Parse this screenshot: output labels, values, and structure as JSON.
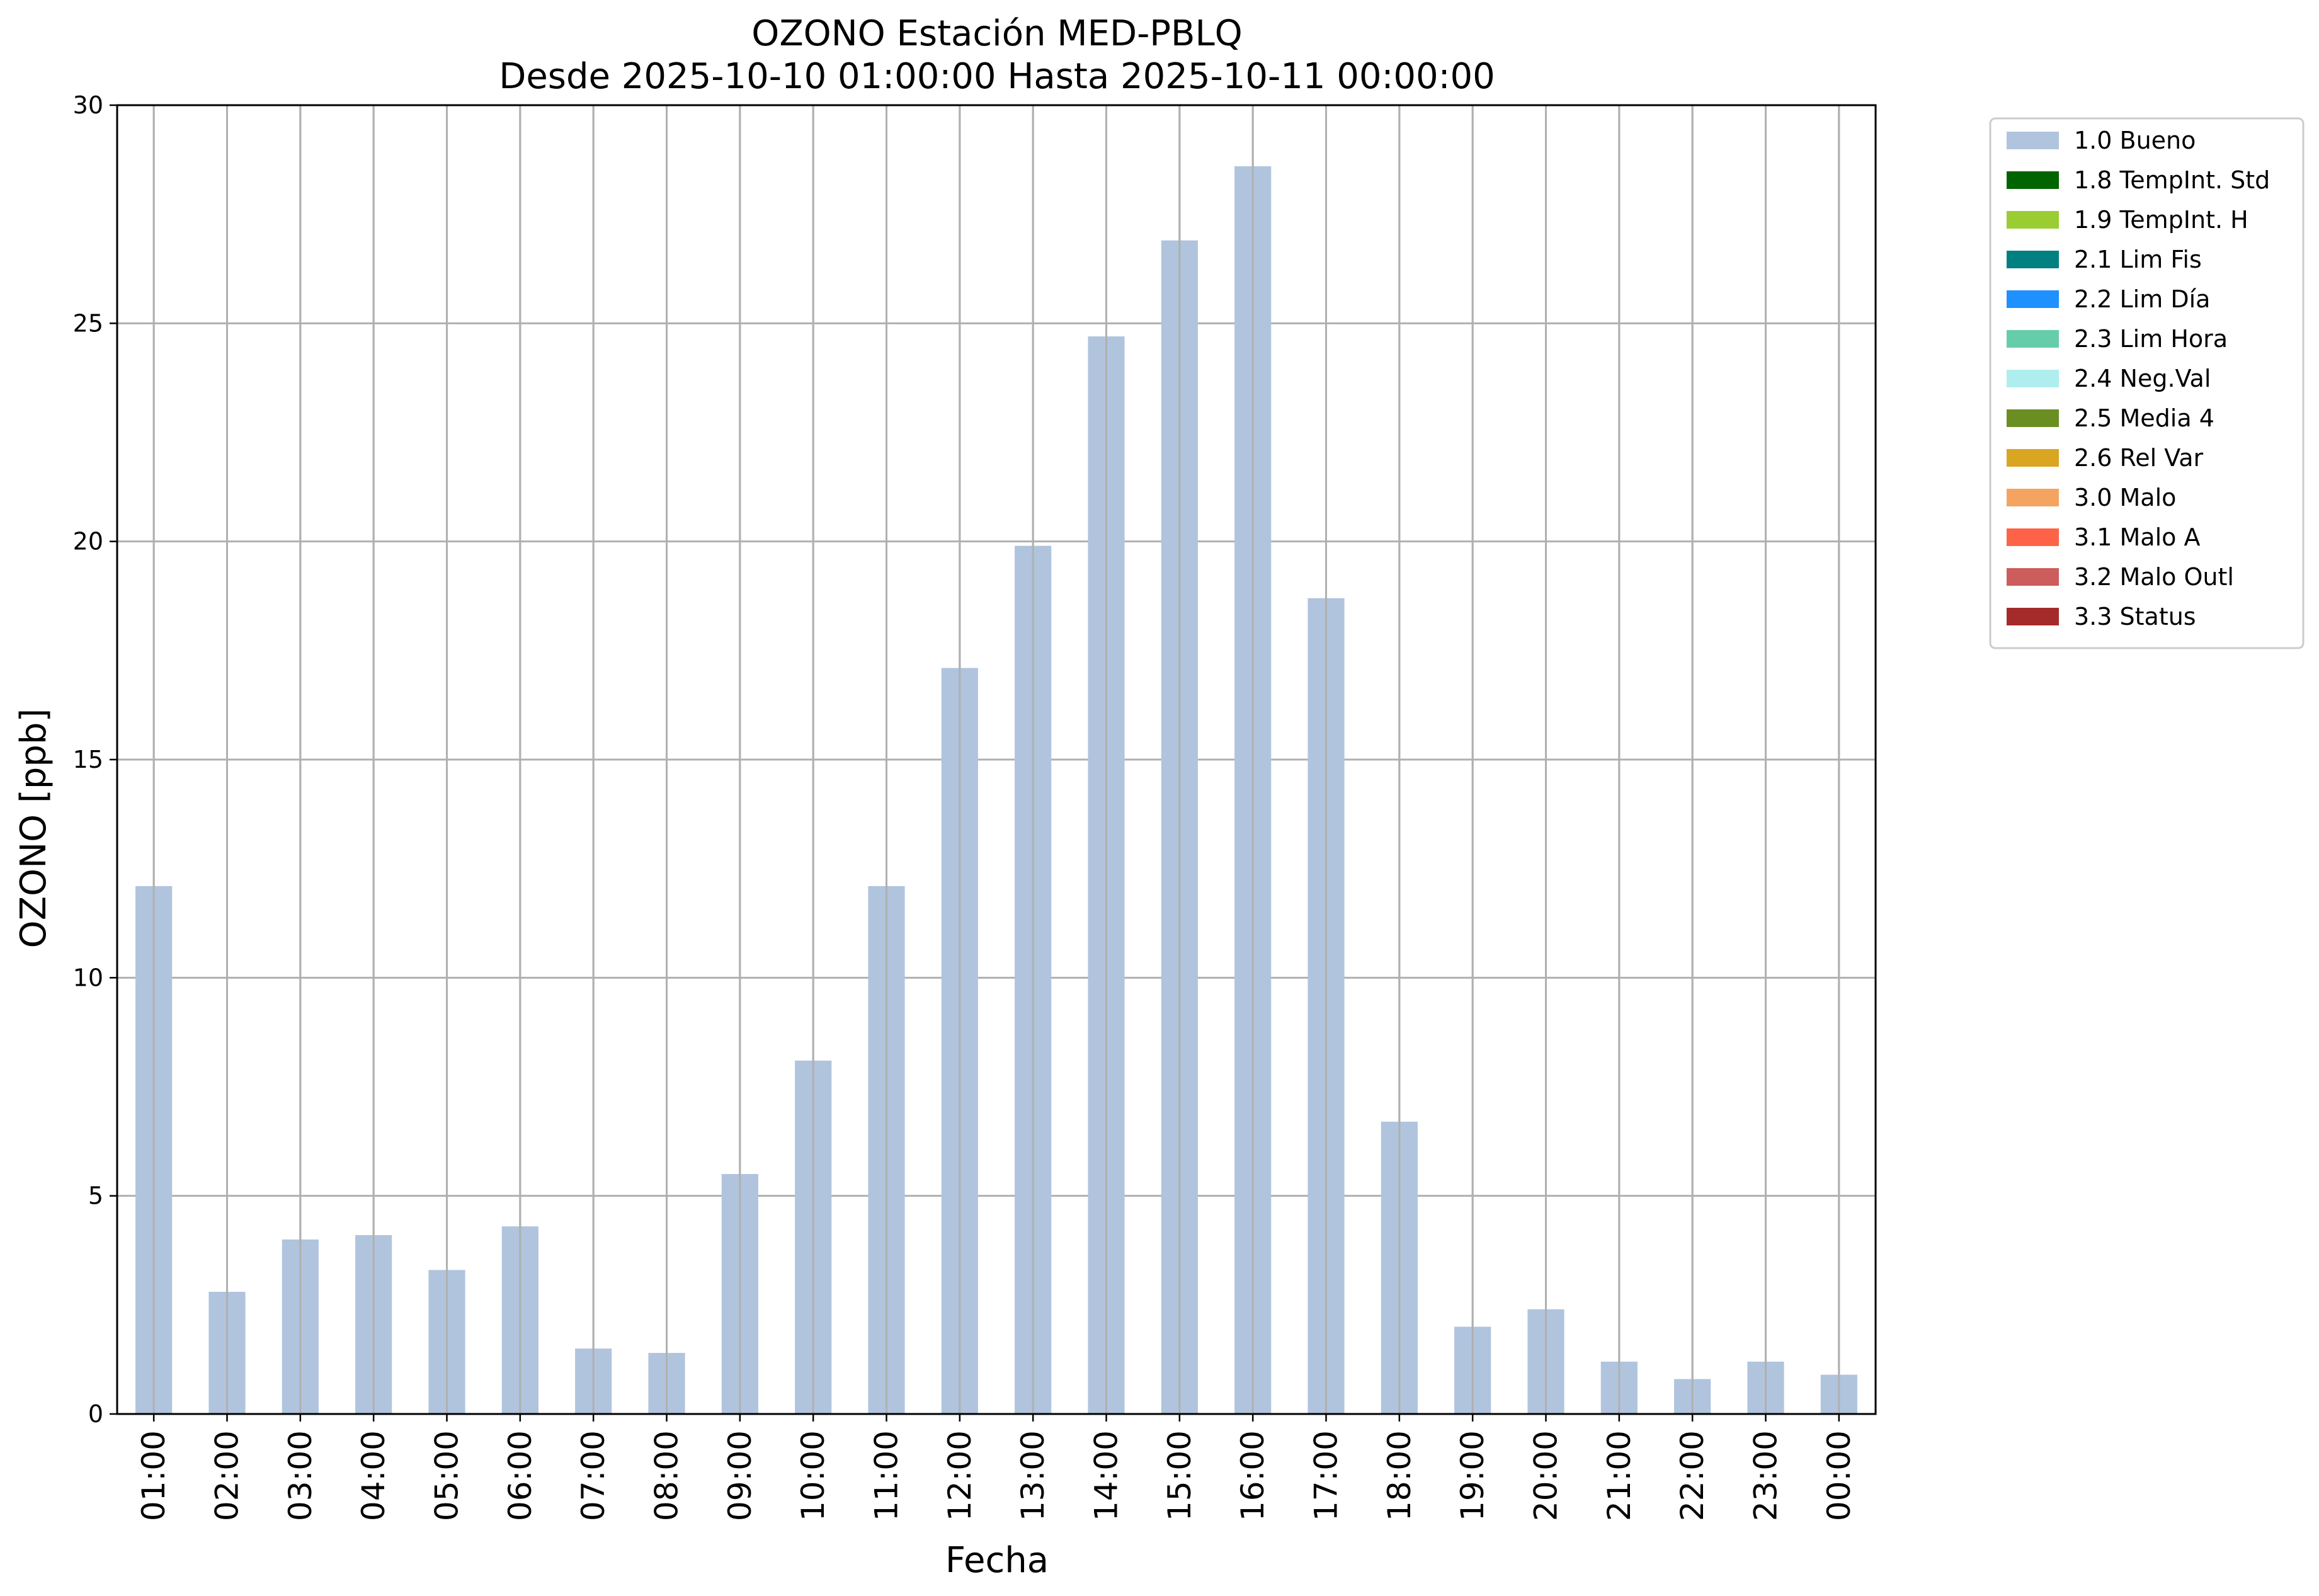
{
  "chart_data": {
    "type": "bar",
    "title": "OZONO Estación MED-PBLQ",
    "subtitle": "Desde 2025-10-10 01:00:00 Hasta 2025-10-11 00:00:00",
    "xlabel": "Fecha",
    "ylabel": "OZONO [ppb]",
    "ylim": [
      0,
      30
    ],
    "yticks": [
      0,
      5,
      10,
      15,
      20,
      25,
      30
    ],
    "grid": true,
    "legend_position": "outside-top-right",
    "categories": [
      "01:00",
      "02:00",
      "03:00",
      "04:00",
      "05:00",
      "06:00",
      "07:00",
      "08:00",
      "09:00",
      "10:00",
      "11:00",
      "12:00",
      "13:00",
      "14:00",
      "15:00",
      "16:00",
      "17:00",
      "18:00",
      "19:00",
      "20:00",
      "21:00",
      "22:00",
      "23:00",
      "00:00"
    ],
    "series": [
      {
        "name": "1.0 Bueno",
        "color": "#b0c4de",
        "values": [
          12.1,
          2.8,
          4.0,
          4.1,
          3.3,
          4.3,
          1.5,
          1.4,
          5.5,
          8.1,
          12.1,
          17.1,
          19.9,
          24.7,
          26.9,
          28.6,
          18.7,
          6.7,
          2.0,
          2.4,
          1.2,
          0.8,
          1.2,
          0.9
        ]
      }
    ],
    "legend": [
      {
        "label": "1.0 Bueno",
        "color": "#b0c4de"
      },
      {
        "label": "1.8 TempInt. Std",
        "color": "#006400"
      },
      {
        "label": "1.9 TempInt. H",
        "color": "#9acd32"
      },
      {
        "label": "2.1 Lim Fis",
        "color": "#008080"
      },
      {
        "label": "2.2 Lim Día",
        "color": "#1e90ff"
      },
      {
        "label": "2.3 Lim Hora",
        "color": "#66cdaa"
      },
      {
        "label": "2.4 Neg.Val",
        "color": "#afeeee"
      },
      {
        "label": "2.5 Media 4",
        "color": "#6b8e23"
      },
      {
        "label": "2.6 Rel Var",
        "color": "#daa520"
      },
      {
        "label": "3.0 Malo",
        "color": "#f4a460"
      },
      {
        "label": "3.1 Malo A",
        "color": "#ff6347"
      },
      {
        "label": "3.2 Malo Outl",
        "color": "#cd5c5c"
      },
      {
        "label": "3.3 Status",
        "color": "#a52a2a"
      }
    ]
  }
}
